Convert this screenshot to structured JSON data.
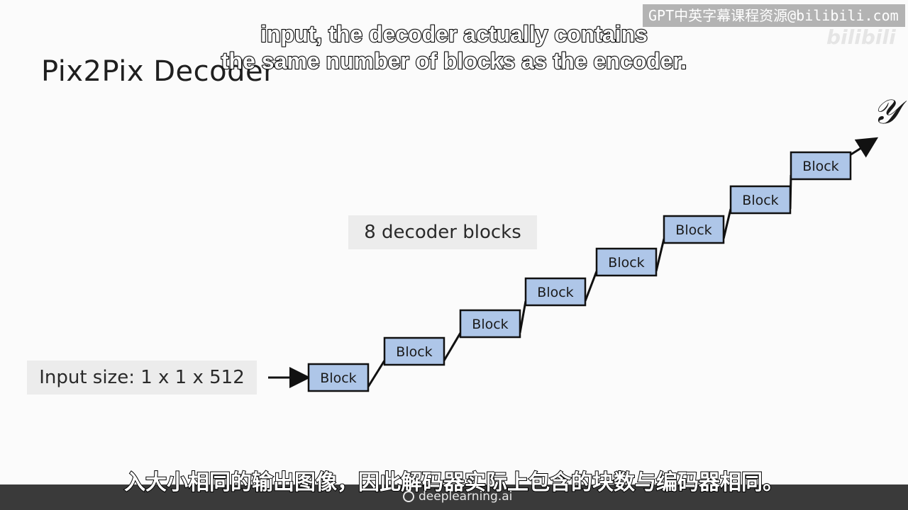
{
  "slide": {
    "title": "Pix2Pix Decoder",
    "decoder_blocks_label": "8 decoder blocks",
    "input_size_label": "Input size: 1 x 1 x 512",
    "output_symbol": "𝒴",
    "block_label": "Block",
    "block_count": 8
  },
  "subtitles": {
    "en_line1": "input, the decoder actually contains",
    "en_line2": "the same number of blocks as the encoder.",
    "zh": "入大小相同的输出图像，因此解码器实际上包含的块数与编码器相同。"
  },
  "watermark": {
    "text": "GPT中英字幕课程资源@bilibili.com"
  },
  "footer": {
    "brand": "deeplearning.ai"
  },
  "colors": {
    "block_fill": "#aec6e8",
    "block_stroke": "#111111",
    "label_bg": "#ececec"
  }
}
